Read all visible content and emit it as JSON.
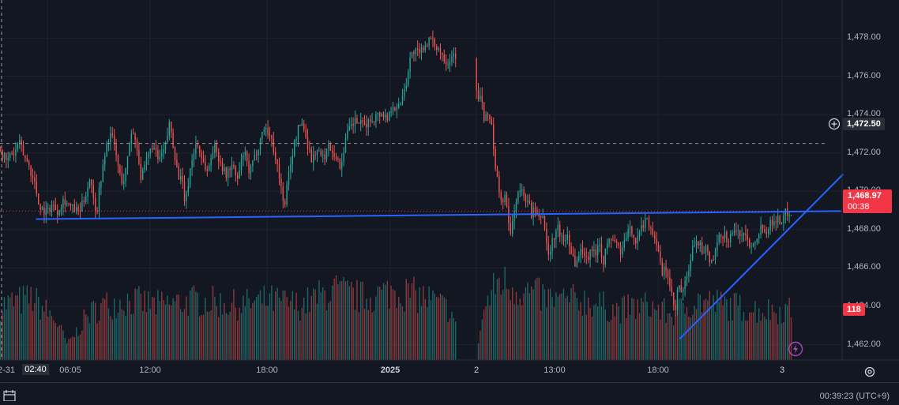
{
  "chart_data": {
    "type": "candlestick",
    "y_ticks": [
      1478.0,
      1476.0,
      1474.0,
      1472.0,
      1470.0,
      1468.0,
      1466.0,
      1464.0,
      1462.0
    ],
    "y_tick_labels": [
      "1,478.00",
      "1,476.00",
      "1,474.00",
      "1,472.00",
      "1,470.00",
      "1,468.00",
      "1,466.00",
      "1,464.00",
      "1,462.00"
    ],
    "ylim": [
      1461.2,
      1479.7
    ],
    "x_labels": [
      "2-31",
      "02:40",
      "06:05",
      "12:00",
      "18:00",
      "2025",
      "2",
      "13:00",
      "18:00",
      "3"
    ],
    "close_path": [
      [
        0,
        1472.2
      ],
      [
        4,
        1471.8
      ],
      [
        8,
        1471.5
      ],
      [
        13,
        1472.0
      ],
      [
        18,
        1471.9
      ],
      [
        22,
        1472.6
      ],
      [
        26,
        1472.3
      ],
      [
        30,
        1471.8
      ],
      [
        35,
        1471.5
      ],
      [
        40,
        1470.8
      ],
      [
        44,
        1470.3
      ],
      [
        48,
        1469.4
      ],
      [
        52,
        1469.1
      ],
      [
        58,
        1468.9
      ],
      [
        65,
        1469.3
      ],
      [
        72,
        1469.0
      ],
      [
        80,
        1469.6
      ],
      [
        88,
        1469.2
      ],
      [
        95,
        1469.0
      ],
      [
        100,
        1468.9
      ],
      [
        106,
        1469.6
      ],
      [
        110,
        1470.2
      ],
      [
        114,
        1470.9
      ],
      [
        118,
        1469.4
      ],
      [
        122,
        1469.0
      ],
      [
        126,
        1470.5
      ],
      [
        130,
        1471.3
      ],
      [
        135,
        1472.6
      ],
      [
        140,
        1473.0
      ],
      [
        145,
        1472.2
      ],
      [
        150,
        1471.0
      ],
      [
        155,
        1470.4
      ],
      [
        160,
        1471.4
      ],
      [
        165,
        1473.2
      ],
      [
        172,
        1472.6
      ],
      [
        178,
        1470.6
      ],
      [
        185,
        1471.6
      ],
      [
        192,
        1472.4
      ],
      [
        200,
        1471.6
      ],
      [
        208,
        1472.2
      ],
      [
        214,
        1473.6
      ],
      [
        218,
        1472.6
      ],
      [
        224,
        1471.0
      ],
      [
        230,
        1470.4
      ],
      [
        234,
        1469.3
      ],
      [
        240,
        1471.2
      ],
      [
        248,
        1472.6
      ],
      [
        256,
        1471.6
      ],
      [
        262,
        1471.0
      ],
      [
        270,
        1472.4
      ],
      [
        278,
        1471.6
      ],
      [
        285,
        1470.8
      ],
      [
        292,
        1471.4
      ],
      [
        300,
        1470.6
      ],
      [
        308,
        1472.1
      ],
      [
        315,
        1470.9
      ],
      [
        322,
        1471.8
      ],
      [
        328,
        1472.6
      ],
      [
        334,
        1473.4
      ],
      [
        340,
        1473.0
      ],
      [
        346,
        1472.2
      ],
      [
        350,
        1471.4
      ],
      [
        355,
        1470.2
      ],
      [
        360,
        1469.2
      ],
      [
        364,
        1470.8
      ],
      [
        370,
        1472.1
      ],
      [
        376,
        1473.2
      ],
      [
        382,
        1473.6
      ],
      [
        388,
        1472.6
      ],
      [
        394,
        1471.6
      ],
      [
        400,
        1472.2
      ],
      [
        408,
        1471.7
      ],
      [
        416,
        1472.4
      ],
      [
        424,
        1471.9
      ],
      [
        430,
        1471.2
      ],
      [
        436,
        1472.6
      ],
      [
        442,
        1473.3
      ],
      [
        450,
        1473.7
      ],
      [
        458,
        1473.4
      ],
      [
        466,
        1473.6
      ],
      [
        474,
        1473.9
      ],
      [
        482,
        1474.1
      ],
      [
        490,
        1473.8
      ],
      [
        496,
        1474.6
      ],
      [
        502,
        1474.2
      ],
      [
        508,
        1474.9
      ],
      [
        514,
        1475.8
      ],
      [
        518,
        1476.9
      ],
      [
        524,
        1477.4
      ],
      [
        530,
        1477.1
      ],
      [
        536,
        1477.6
      ],
      [
        542,
        1477.9
      ],
      [
        548,
        1477.7
      ],
      [
        554,
        1477.5
      ],
      [
        560,
        1477.1
      ],
      [
        566,
        1476.7
      ],
      [
        572,
        1477.2
      ],
      [
        578,
        1477.1
      ],
      [
        600,
        1475.8
      ],
      [
        604,
        1474.6
      ],
      [
        608,
        1475.2
      ],
      [
        612,
        1473.6
      ],
      [
        618,
        1474.1
      ],
      [
        622,
        1473.4
      ],
      [
        626,
        1471.1
      ],
      [
        630,
        1470.4
      ],
      [
        634,
        1469.3
      ],
      [
        638,
        1469.9
      ],
      [
        642,
        1468.6
      ],
      [
        646,
        1467.7
      ],
      [
        650,
        1469.1
      ],
      [
        654,
        1469.7
      ],
      [
        658,
        1470.1
      ],
      [
        664,
        1469.6
      ],
      [
        668,
        1469.7
      ],
      [
        672,
        1468.6
      ],
      [
        676,
        1469.2
      ],
      [
        680,
        1468.4
      ],
      [
        686,
        1468.9
      ],
      [
        690,
        1467.6
      ],
      [
        694,
        1466.6
      ],
      [
        700,
        1467.6
      ],
      [
        706,
        1468.1
      ],
      [
        712,
        1467.3
      ],
      [
        718,
        1467.8
      ],
      [
        722,
        1466.9
      ],
      [
        728,
        1466.2
      ],
      [
        732,
        1466.6
      ],
      [
        736,
        1467.1
      ],
      [
        742,
        1466.4
      ],
      [
        748,
        1467.2
      ],
      [
        752,
        1466.6
      ],
      [
        758,
        1467.6
      ],
      [
        762,
        1466.2
      ],
      [
        768,
        1467.2
      ],
      [
        774,
        1467.6
      ],
      [
        780,
        1467.2
      ],
      [
        786,
        1466.8
      ],
      [
        792,
        1467.6
      ],
      [
        798,
        1468.1
      ],
      [
        804,
        1467.4
      ],
      [
        810,
        1467.9
      ],
      [
        816,
        1468.6
      ],
      [
        820,
        1468.4
      ],
      [
        826,
        1467.8
      ],
      [
        830,
        1467.4
      ],
      [
        834,
        1466.4
      ],
      [
        838,
        1465.6
      ],
      [
        842,
        1466.1
      ],
      [
        846,
        1465.3
      ],
      [
        850,
        1464.4
      ],
      [
        854,
        1463.6
      ],
      [
        858,
        1465.2
      ],
      [
        862,
        1464.6
      ],
      [
        866,
        1465.1
      ],
      [
        870,
        1465.6
      ],
      [
        874,
        1466.6
      ],
      [
        880,
        1467.6
      ],
      [
        886,
        1467.1
      ],
      [
        890,
        1466.6
      ],
      [
        894,
        1467.1
      ],
      [
        898,
        1466.2
      ],
      [
        904,
        1466.6
      ],
      [
        910,
        1467.6
      ],
      [
        916,
        1467.8
      ],
      [
        922,
        1467.4
      ],
      [
        928,
        1468.1
      ],
      [
        934,
        1467.7
      ],
      [
        940,
        1467.9
      ],
      [
        946,
        1467.4
      ],
      [
        952,
        1467.2
      ],
      [
        958,
        1467.8
      ],
      [
        964,
        1468.2
      ],
      [
        970,
        1468.0
      ],
      [
        976,
        1468.4
      ],
      [
        982,
        1468.6
      ],
      [
        988,
        1468.4
      ],
      [
        994,
        1468.9
      ],
      [
        1000,
        1468.97
      ]
    ],
    "volume_path": [
      [
        0,
        0.55
      ],
      [
        40,
        0.62
      ],
      [
        70,
        0.4
      ],
      [
        85,
        0.15
      ],
      [
        110,
        0.45
      ],
      [
        130,
        0.55
      ],
      [
        160,
        0.6
      ],
      [
        200,
        0.55
      ],
      [
        250,
        0.6
      ],
      [
        300,
        0.55
      ],
      [
        340,
        0.6
      ],
      [
        380,
        0.55
      ],
      [
        420,
        0.7
      ],
      [
        460,
        0.62
      ],
      [
        500,
        0.7
      ],
      [
        540,
        0.62
      ],
      [
        570,
        0.5
      ],
      [
        585,
        0.05
      ],
      [
        600,
        0.0
      ],
      [
        612,
        0.5
      ],
      [
        630,
        0.8
      ],
      [
        660,
        0.7
      ],
      [
        700,
        0.6
      ],
      [
        740,
        0.6
      ],
      [
        780,
        0.5
      ],
      [
        820,
        0.55
      ],
      [
        850,
        0.45
      ],
      [
        880,
        0.6
      ],
      [
        920,
        0.55
      ],
      [
        960,
        0.5
      ],
      [
        1000,
        0.5
      ]
    ],
    "trendline_horizontal": [
      [
        1468.55,
        0.04
      ],
      [
        1468.97,
        0.935
      ]
    ],
    "trendline_rising": [
      [
        1462.3,
        0.756
      ],
      [
        1470.9,
        0.938
      ]
    ],
    "dashed_level": 1472.5,
    "dotted_level": 1468.97,
    "grid": true,
    "colors": {
      "up": "#26a69a",
      "down": "#ef5350",
      "trend": "#2962ff",
      "grid": "#1e222d",
      "axis_text": "#b2b5be"
    }
  },
  "price_axis": {
    "crosshair_price": "1,472.50",
    "last_price": "1,468.97",
    "countdown": "00:38",
    "volume_value": "118",
    "badge_colors": {
      "last": "#f23645",
      "volume": "#f23645",
      "crosshair": "#2a2e39"
    }
  },
  "status_bar": {
    "clock": "00:39:23 (UTC+9)"
  },
  "icons": [
    "add-alert-icon",
    "settings-icon",
    "lightning-icon",
    "calendar-icon"
  ]
}
